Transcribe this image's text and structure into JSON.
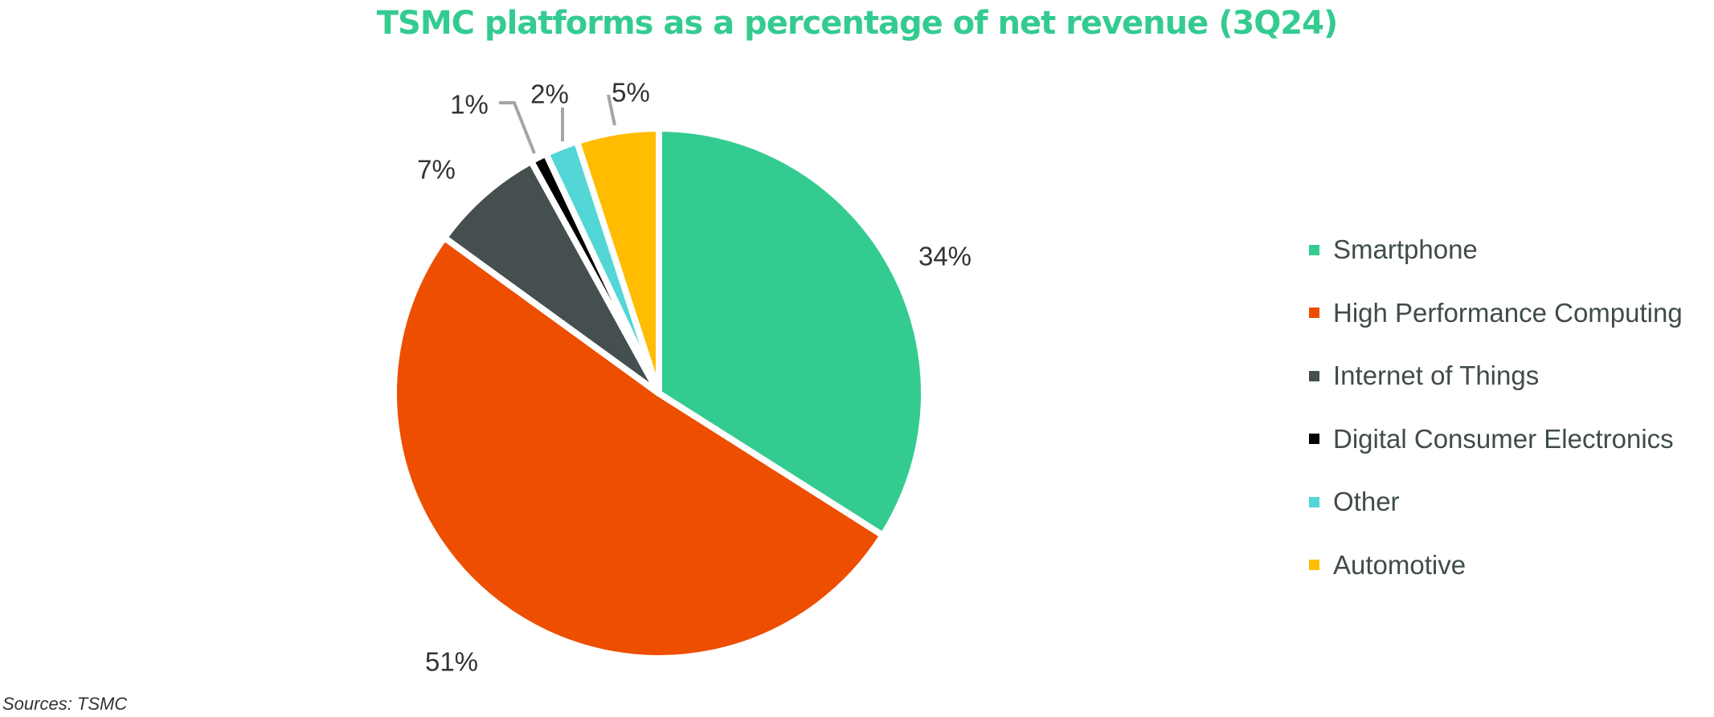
{
  "chart_data": {
    "type": "pie",
    "title": "TSMC platforms as a percentage of net revenue (3Q24)",
    "slices": [
      {
        "name": "Smartphone",
        "value": 34,
        "label": "34%",
        "color": "#34CB91"
      },
      {
        "name": "High Performance Computing",
        "value": 51,
        "label": "51%",
        "color": "#ED4E00"
      },
      {
        "name": "Internet of Things",
        "value": 7,
        "label": "7%",
        "color": "#454F50"
      },
      {
        "name": "Digital Consumer Electronics",
        "value": 1,
        "label": "1%",
        "color": "#000000"
      },
      {
        "name": "Other",
        "value": 2,
        "label": "2%",
        "color": "#52D6D6"
      },
      {
        "name": "Automotive",
        "value": 5,
        "label": "5%",
        "color": "#FFBC00"
      }
    ],
    "start_angle": "12 o'clock",
    "direction": "clockwise",
    "legend_position": "right",
    "leader_line_color": "#A5A5A5"
  },
  "source": "Sources: TSMC"
}
